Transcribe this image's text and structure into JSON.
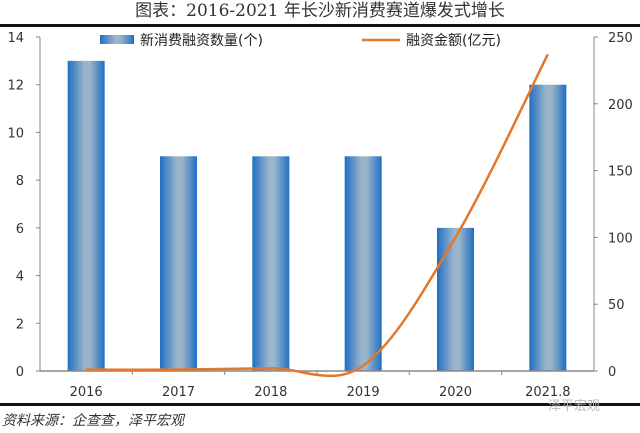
{
  "title": "图表：2016-2021 年长沙新消费赛道爆发式增长",
  "source": "资料来源：企查查，泽平宏观",
  "watermark": "泽平宏观",
  "colors": {
    "bar_edge": "#1f6fc4",
    "bar_center": "#9ab4c9",
    "line": "#e3782a",
    "axis": "#888888"
  },
  "chart_data": {
    "type": "bar+line",
    "title": "图表：2016-2021 年长沙新消费赛道爆发式增长",
    "categories": [
      "2016",
      "2017",
      "2018",
      "2019",
      "2020",
      "2021.8"
    ],
    "series": [
      {
        "name": "新消费融资数量(个)",
        "type": "bar",
        "axis": "left",
        "values": [
          13,
          9,
          9,
          9,
          6,
          12
        ]
      },
      {
        "name": "融资金额(亿元)",
        "type": "line",
        "axis": "right",
        "values": [
          1,
          1,
          2,
          4,
          100,
          237
        ]
      }
    ],
    "left_axis": {
      "ylim": [
        0,
        14
      ],
      "ticks": [
        "0",
        "2",
        "4",
        "6",
        "8",
        "10",
        "12",
        "14"
      ]
    },
    "right_axis": {
      "ylim": [
        0,
        250
      ],
      "ticks": [
        "0",
        "50",
        "100",
        "150",
        "200",
        "250"
      ]
    },
    "legend_position": "top",
    "grid": false
  }
}
